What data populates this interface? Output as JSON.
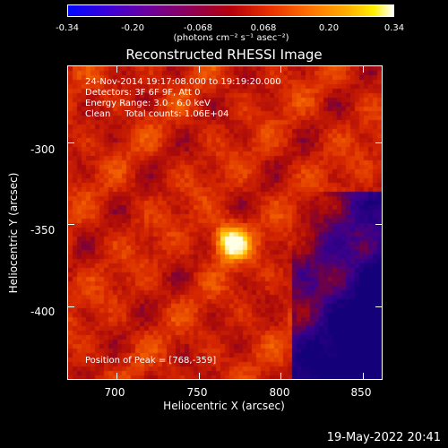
{
  "colorbar": {
    "ticks": [
      "-0.34",
      "-0.20",
      "-0.068",
      "0.068",
      "0.20",
      "0.34"
    ],
    "units": "(photons cm⁻² s⁻¹ asec⁻²)"
  },
  "title": "Reconstructed RHESSI Image",
  "info": {
    "line1": "24-Nov-2014 19:17:08.000 to 19:19:20.000",
    "line2": "Detectors: 3F 6F 9F, Att 0",
    "line3": "Energy Range: 3.0 - 6.0 keV",
    "line4": "Clean     Total counts: 1.06E+04",
    "peak": "Position of Peak = [768,-359]"
  },
  "axes": {
    "xlabel": "Heliocentric X (arcsec)",
    "ylabel": "Heliocentric Y (arcsec)",
    "xticks": [
      "700",
      "750",
      "800",
      "850"
    ],
    "yticks": [
      "-300",
      "-350",
      "-400"
    ],
    "xrange": [
      670,
      862
    ],
    "yrange": [
      -445,
      -253
    ]
  },
  "peak_position": [
    768,
    -359
  ],
  "footer": "19-May-2022 20:41"
}
